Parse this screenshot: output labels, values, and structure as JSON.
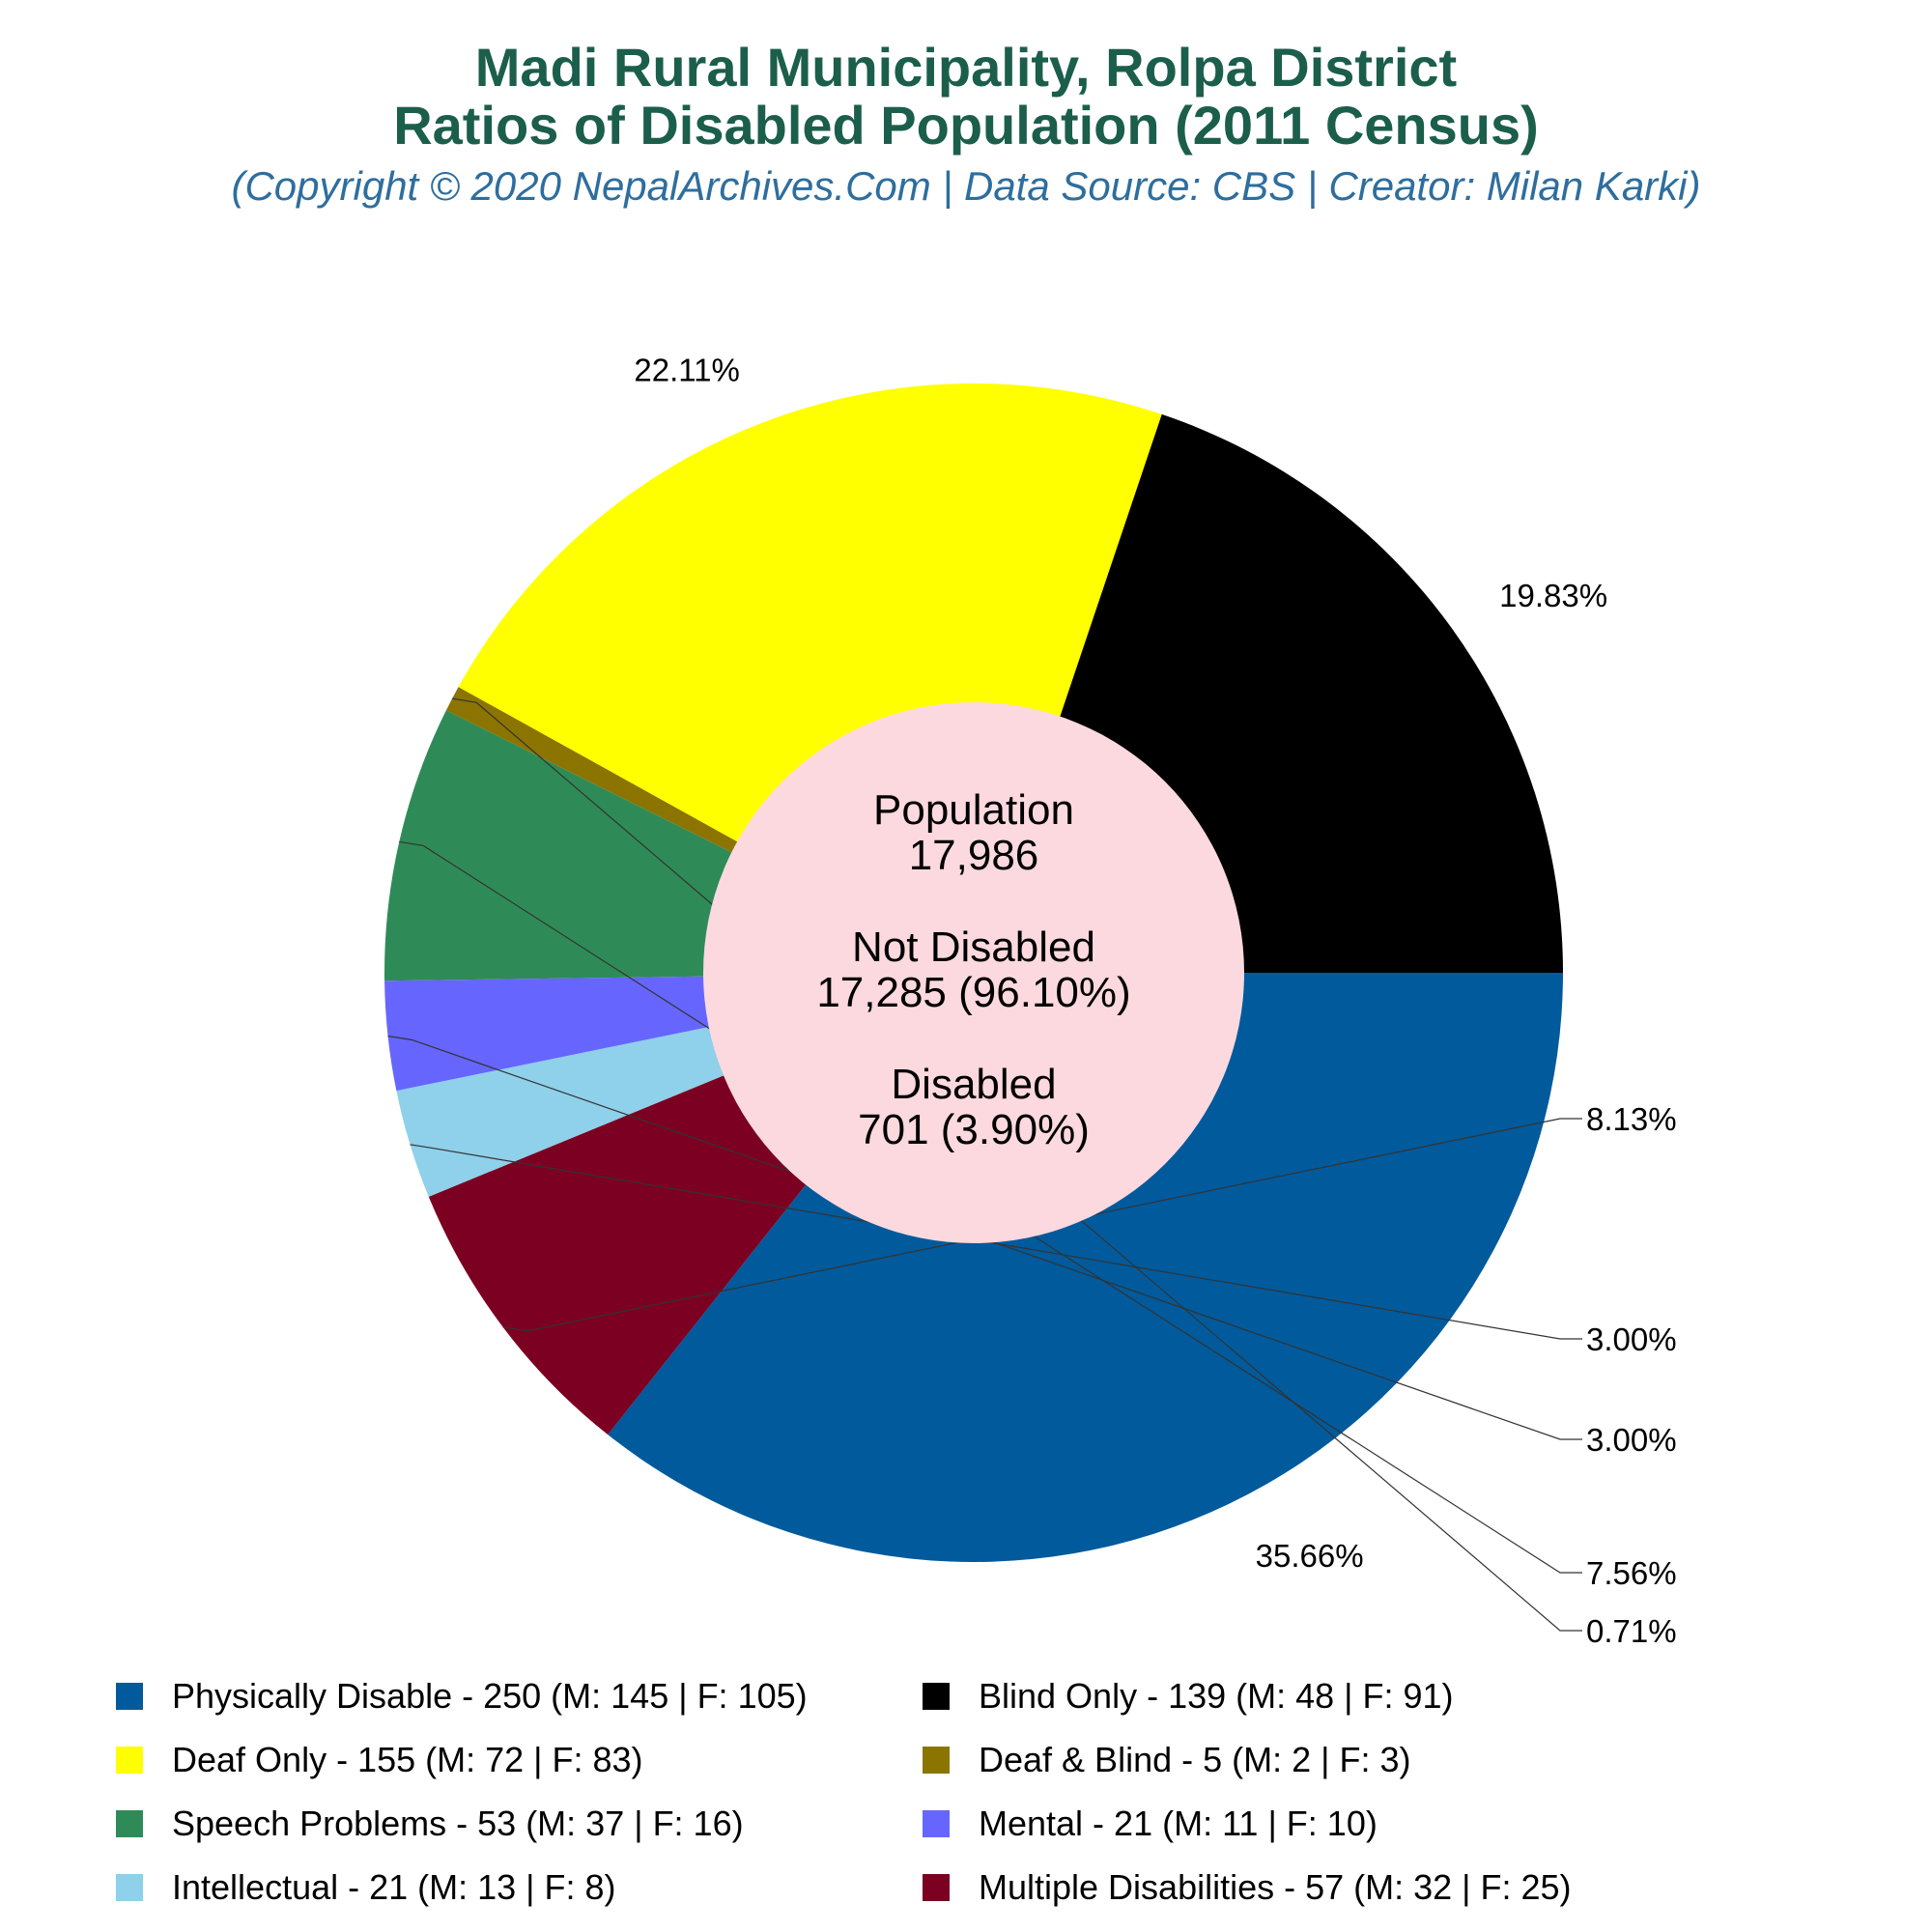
{
  "header": {
    "title_line1": "Madi Rural Municipality, Rolpa District",
    "title_line2": "Ratios of Disabled Population (2011 Census)",
    "subtitle": "(Copyright © 2020 NepalArchives.Com | Data Source: CBS | Creator: Milan Karki)"
  },
  "center": {
    "population_label": "Population",
    "population_value": "17,986",
    "not_disabled_label": "Not Disabled",
    "not_disabled_value": "17,285 (96.10%)",
    "disabled_label": "Disabled",
    "disabled_value": "701 (3.90%)"
  },
  "chart_data": {
    "type": "pie",
    "title": "Madi Rural Municipality, Rolpa District Ratios of Disabled Population (2011 Census)",
    "categories": [
      "Physically Disable",
      "Multiple Disabilities",
      "Intellectual",
      "Mental",
      "Speech Problems",
      "Deaf & Blind",
      "Deaf Only",
      "Blind Only"
    ],
    "values": [
      250,
      57,
      21,
      21,
      53,
      5,
      155,
      139
    ],
    "percent_labels": [
      "35.66%",
      "8.13%",
      "3.00%",
      "3.00%",
      "7.56%",
      "0.71%",
      "22.11%",
      "19.83%"
    ],
    "colors": [
      "#005a9c",
      "#7b0022",
      "#8fd0ea",
      "#6666ff",
      "#2e8b57",
      "#8b7500",
      "#ffff00",
      "#000000"
    ],
    "center_color": "#fcd9df",
    "legend_placement": "bottom",
    "legend": [
      {
        "label": "Physically Disable - 250 (M: 145 | F: 105)",
        "color": "#005a9c"
      },
      {
        "label": "Blind Only - 139 (M: 48 | F: 91)",
        "color": "#000000"
      },
      {
        "label": "Deaf Only - 155 (M: 72 | F: 83)",
        "color": "#ffff00"
      },
      {
        "label": "Deaf & Blind - 5 (M: 2 | F: 3)",
        "color": "#8b7500"
      },
      {
        "label": "Speech Problems - 53 (M: 37 | F: 16)",
        "color": "#2e8b57"
      },
      {
        "label": "Mental - 21 (M: 11 | F: 10)",
        "color": "#6666ff"
      },
      {
        "label": "Intellectual - 21 (M: 13 | F: 8)",
        "color": "#8fd0ea"
      },
      {
        "label": "Multiple Disabilities - 57 (M: 32 | F: 25)",
        "color": "#7b0022"
      }
    ]
  }
}
